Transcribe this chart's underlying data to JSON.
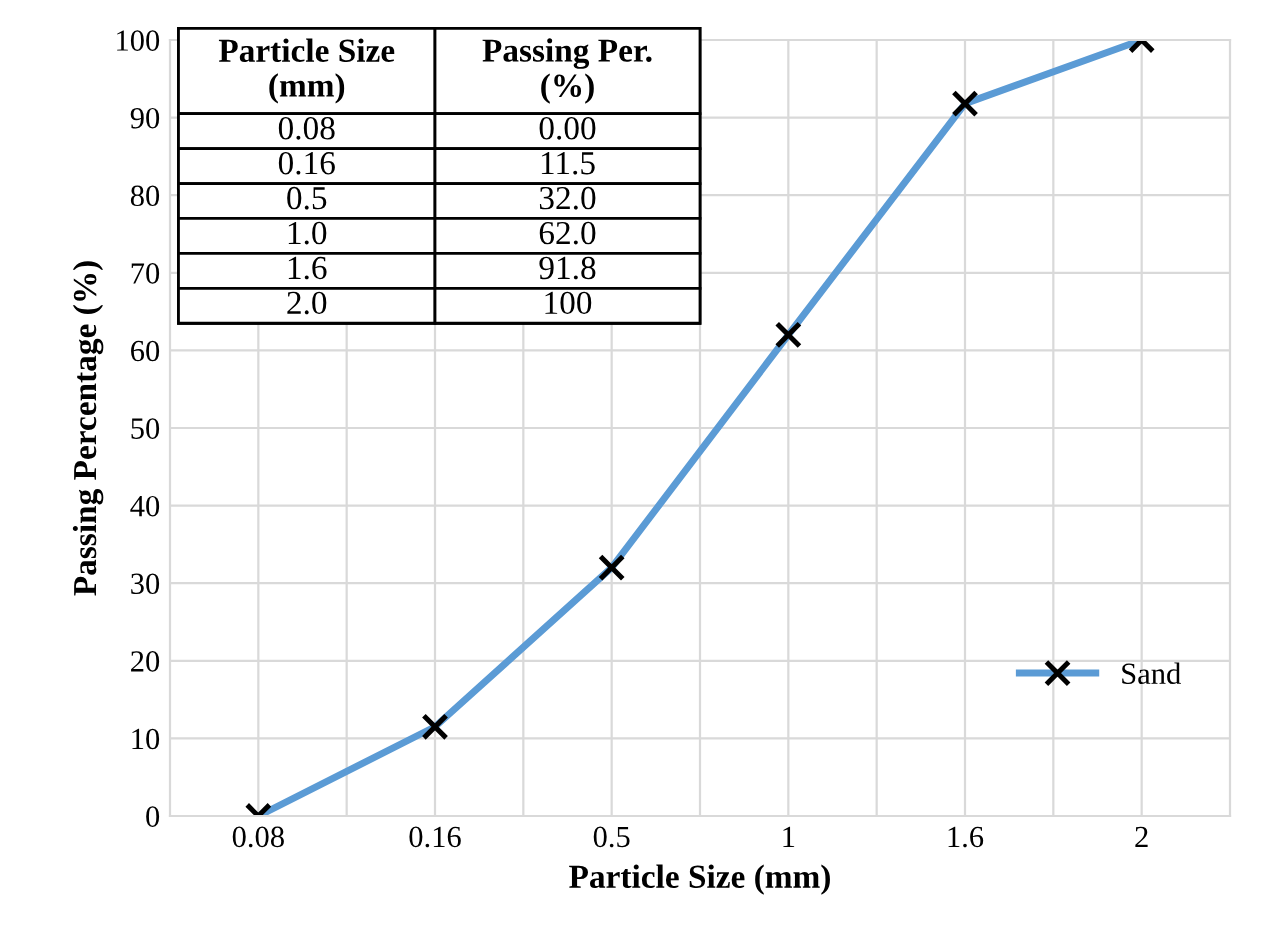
{
  "chart_data": {
    "type": "line",
    "xlabel": "Particle Size (mm)",
    "ylabel": "Passing Percentage (%)",
    "categories": [
      "0.08",
      "0.16",
      "0.5",
      "1",
      "1.6",
      "2"
    ],
    "series": [
      {
        "name": "Sand",
        "color": "#5b9bd5",
        "values": [
          0,
          11.5,
          32.0,
          62.0,
          91.8,
          100
        ]
      }
    ],
    "annotations": [
      "Particle Size\n(mm)",
      "Passing Per.\n(%)",
      "0.08",
      "0.00",
      "0.16",
      "11.5",
      "0.5",
      "32.0",
      "1.0",
      "62.0",
      "1.6",
      "91.8",
      "2.0",
      "100"
    ],
    "ylim": [
      0,
      100
    ],
    "yticks": [
      0,
      10,
      20,
      30,
      40,
      50,
      60,
      70,
      80,
      90,
      100
    ],
    "grid": true,
    "legend": "right",
    "marker": "cross",
    "line_style": "solid"
  }
}
